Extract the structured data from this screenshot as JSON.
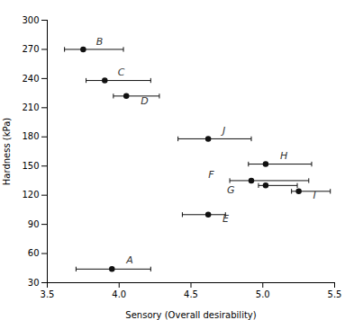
{
  "chart_data": {
    "type": "scatter",
    "xlabel": "Sensory (Overall desirability)",
    "ylabel": "Hardness (kPa)",
    "x": [
      3.75,
      3.9,
      4.05,
      4.62,
      5.02,
      4.92,
      5.02,
      5.25,
      4.62,
      3.95
    ],
    "values": [
      270,
      238,
      222,
      178,
      152,
      135,
      130,
      124,
      100,
      44
    ],
    "xerr_left": [
      0.13,
      0.13,
      0.09,
      0.21,
      0.12,
      0.15,
      0.05,
      0.05,
      0.18,
      0.25
    ],
    "xerr_right": [
      0.28,
      0.32,
      0.23,
      0.3,
      0.32,
      0.4,
      0.22,
      0.22,
      0.12,
      0.27
    ],
    "annotations": [
      {
        "text": "B",
        "x": 3.84,
        "y": 275
      },
      {
        "text": "C",
        "x": 3.99,
        "y": 243
      },
      {
        "text": "D",
        "x": 4.15,
        "y": 214
      },
      {
        "text": "J",
        "x": 4.72,
        "y": 183
      },
      {
        "text": "H",
        "x": 5.12,
        "y": 157
      },
      {
        "text": "F",
        "x": 4.62,
        "y": 138
      },
      {
        "text": "G",
        "x": 4.75,
        "y": 122
      },
      {
        "text": "I",
        "x": 5.35,
        "y": 116
      },
      {
        "text": "E",
        "x": 4.72,
        "y": 92
      },
      {
        "text": "A",
        "x": 4.05,
        "y": 50
      }
    ],
    "color": "#111111",
    "marker": "circle",
    "xlim": [
      3.5,
      5.5
    ],
    "ylim": [
      30,
      300
    ],
    "xticks": [
      3.5,
      {
        "value": 4,
        "label": "4.0"
      },
      4.5,
      {
        "value": 5,
        "label": "5.0"
      },
      5.5
    ],
    "yticks": [
      30,
      60,
      90,
      120,
      150,
      180,
      210,
      240,
      270,
      300
    ],
    "grid": false
  }
}
